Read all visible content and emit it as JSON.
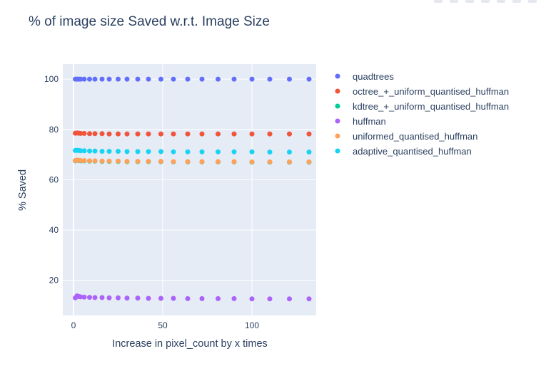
{
  "chart_data": {
    "type": "scatter",
    "title": "% of image size Saved w.r.t. Image Size",
    "xlabel": "Increase in pixel_count by x times",
    "ylabel": "% Saved",
    "xlim": [
      -6,
      136
    ],
    "ylim": [
      6,
      106
    ],
    "xticks": [
      0,
      50,
      100
    ],
    "yticks": [
      20,
      40,
      60,
      80,
      100
    ],
    "grid": true,
    "legend_position": "right",
    "x": [
      1,
      2,
      3,
      4,
      6,
      9,
      12,
      16,
      20,
      25,
      30,
      36,
      42,
      49,
      56,
      64,
      72,
      81,
      90,
      100,
      110,
      121,
      132
    ],
    "series": [
      {
        "name": "quadtrees",
        "color": "#636efa",
        "values": [
          100,
          100,
          100,
          100,
          100,
          100,
          100,
          100,
          100,
          100,
          100,
          100,
          100,
          100,
          100,
          100,
          100,
          100,
          100,
          100,
          100,
          100,
          100
        ]
      },
      {
        "name": "octree_+_uniform_quantised_huffman",
        "color": "#ef553b",
        "values": [
          78.5,
          78.6,
          78.5,
          78.4,
          78.4,
          78.3,
          78.3,
          78.3,
          78.2,
          78.2,
          78.2,
          78.2,
          78.2,
          78.2,
          78.2,
          78.2,
          78.2,
          78.2,
          78.2,
          78.2,
          78.2,
          78.2,
          78.2
        ]
      },
      {
        "name": "kdtree_+_uniform_quantised_huffman",
        "color": "#00cc96",
        "values": [
          67.5,
          67.7,
          67.6,
          67.5,
          67.5,
          67.4,
          67.4,
          67.3,
          67.3,
          67.3,
          67.2,
          67.2,
          67.2,
          67.2,
          67.1,
          67.1,
          67.1,
          67.1,
          67.1,
          67.0,
          67.0,
          67.0,
          67.0
        ]
      },
      {
        "name": "huffman",
        "color": "#ab63fa",
        "values": [
          13.0,
          13.8,
          13.5,
          13.4,
          13.3,
          13.2,
          13.1,
          13.1,
          13.0,
          13.0,
          12.9,
          12.9,
          12.8,
          12.8,
          12.8,
          12.7,
          12.7,
          12.7,
          12.7,
          12.6,
          12.6,
          12.6,
          12.6
        ]
      },
      {
        "name": "uniformed_quantised_huffman",
        "color": "#ffa15a",
        "values": [
          67.6,
          67.8,
          67.7,
          67.6,
          67.6,
          67.5,
          67.5,
          67.4,
          67.4,
          67.4,
          67.3,
          67.3,
          67.3,
          67.3,
          67.2,
          67.2,
          67.2,
          67.2,
          67.2,
          67.1,
          67.1,
          67.1,
          67.1
        ]
      },
      {
        "name": "adaptive_quantised_huffman",
        "color": "#19d3f3",
        "values": [
          71.6,
          71.7,
          71.6,
          71.5,
          71.5,
          71.4,
          71.4,
          71.3,
          71.3,
          71.3,
          71.2,
          71.2,
          71.2,
          71.2,
          71.1,
          71.1,
          71.1,
          71.1,
          71.1,
          71.1,
          71.0,
          71.0,
          71.0
        ]
      }
    ]
  }
}
